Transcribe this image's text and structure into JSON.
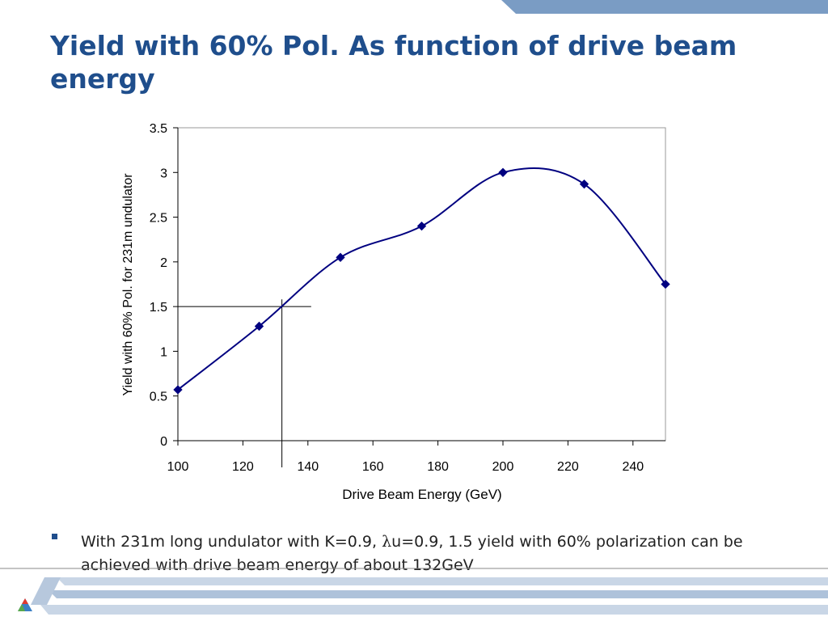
{
  "slide": {
    "title": "Yield with 60% Pol. As function of drive beam energy",
    "bullet": {
      "prefix": "With 231m long undulator with K=0.9, ",
      "lambda_symbol": "λ",
      "suffix": "u=0.9, 1.5 yield with 60% polarization can be achieved with drive beam energy of about 132GeV"
    }
  },
  "chart_data": {
    "type": "line",
    "xlabel": "Drive Beam Energy (GeV)",
    "ylabel": "Yield with 60% Pol. for 231m undulator",
    "xlim": [
      100,
      250
    ],
    "ylim": [
      0,
      3.5
    ],
    "x_ticks": [
      "100",
      "120",
      "140",
      "160",
      "180",
      "200",
      "220",
      "240"
    ],
    "y_ticks": [
      "0",
      "0.5",
      "1",
      "1.5",
      "2",
      "2.5",
      "3",
      "3.5"
    ],
    "series": [
      {
        "x": [
          100,
          125,
          150,
          175,
          200,
          225,
          250
        ],
        "y": [
          0.57,
          1.28,
          2.05,
          2.4,
          3.0,
          2.87,
          1.75
        ],
        "color": "#000080",
        "smooth": true
      }
    ],
    "reference_lines": {
      "y": 1.5,
      "x": 132
    },
    "grid": false,
    "legend": "none"
  }
}
